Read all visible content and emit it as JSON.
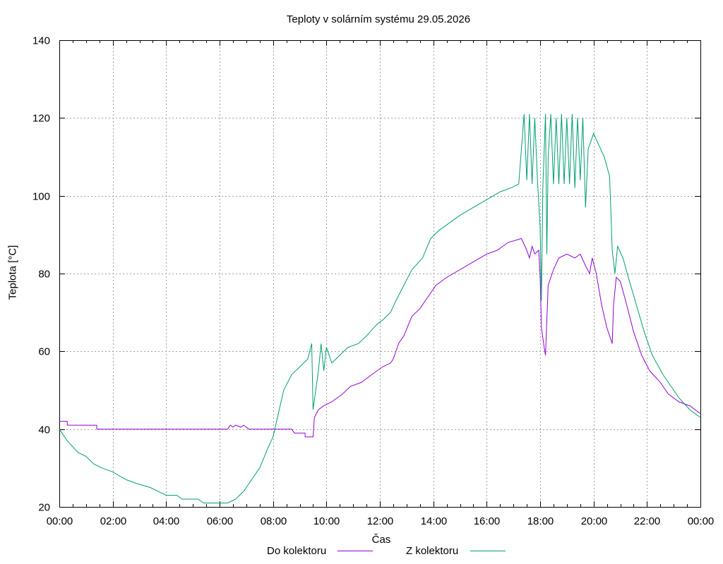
{
  "chart_data": {
    "type": "line",
    "title": "Teploty v solárním systému 29.05.2026",
    "xlabel": "Čas",
    "ylabel": "Teplota [°C]",
    "x_ticks": [
      "00:00",
      "02:00",
      "04:00",
      "06:00",
      "08:00",
      "10:00",
      "12:00",
      "14:00",
      "16:00",
      "18:00",
      "20:00",
      "22:00",
      "00:00"
    ],
    "xlim_hours": [
      0,
      24
    ],
    "ylim": [
      20,
      140
    ],
    "y_ticks": [
      20,
      40,
      60,
      80,
      100,
      120,
      140
    ],
    "grid": true,
    "legend_position": "bottom",
    "series": [
      {
        "name": "Do kolektoru",
        "color": "#9400d3",
        "points": [
          [
            0,
            42
          ],
          [
            0.3,
            42
          ],
          [
            0.3,
            41
          ],
          [
            1.4,
            41
          ],
          [
            1.4,
            40
          ],
          [
            6.3,
            40
          ],
          [
            6.4,
            41
          ],
          [
            6.5,
            40.5
          ],
          [
            6.6,
            41
          ],
          [
            6.8,
            40.5
          ],
          [
            6.9,
            41
          ],
          [
            7.1,
            40
          ],
          [
            8.7,
            40
          ],
          [
            8.8,
            39
          ],
          [
            9.2,
            39
          ],
          [
            9.2,
            38
          ],
          [
            9.5,
            38
          ],
          [
            9.55,
            43
          ],
          [
            9.7,
            45
          ],
          [
            9.9,
            46
          ],
          [
            10.2,
            47
          ],
          [
            10.6,
            49
          ],
          [
            10.9,
            51
          ],
          [
            11.3,
            52
          ],
          [
            11.7,
            54
          ],
          [
            12.1,
            56
          ],
          [
            12.4,
            57
          ],
          [
            12.5,
            58
          ],
          [
            12.7,
            62
          ],
          [
            12.9,
            64
          ],
          [
            13.2,
            69
          ],
          [
            13.5,
            71
          ],
          [
            13.8,
            74
          ],
          [
            14.1,
            77
          ],
          [
            14.5,
            79
          ],
          [
            15,
            81
          ],
          [
            15.5,
            83
          ],
          [
            16,
            85
          ],
          [
            16.4,
            86
          ],
          [
            16.8,
            88
          ],
          [
            17.3,
            89
          ],
          [
            17.5,
            86
          ],
          [
            17.6,
            84
          ],
          [
            17.7,
            87
          ],
          [
            17.8,
            85
          ],
          [
            17.95,
            86
          ],
          [
            18,
            79
          ],
          [
            18.05,
            66
          ],
          [
            18.15,
            61
          ],
          [
            18.2,
            59
          ],
          [
            18.3,
            77
          ],
          [
            18.5,
            81
          ],
          [
            18.7,
            84
          ],
          [
            19,
            85
          ],
          [
            19.3,
            84
          ],
          [
            19.5,
            85
          ],
          [
            19.7,
            82
          ],
          [
            19.85,
            80
          ],
          [
            19.95,
            84
          ],
          [
            20.1,
            80
          ],
          [
            20.3,
            72
          ],
          [
            20.5,
            66
          ],
          [
            20.65,
            63
          ],
          [
            20.7,
            62
          ],
          [
            20.75,
            72
          ],
          [
            20.85,
            79
          ],
          [
            21,
            78
          ],
          [
            21.2,
            73
          ],
          [
            21.5,
            65
          ],
          [
            21.8,
            59
          ],
          [
            22.1,
            55
          ],
          [
            22.5,
            52
          ],
          [
            22.8,
            49
          ],
          [
            23.2,
            47
          ],
          [
            23.6,
            46
          ],
          [
            24,
            44
          ]
        ]
      },
      {
        "name": "Z kolektoru",
        "color": "#009e73",
        "points": [
          [
            0,
            40
          ],
          [
            0.3,
            37
          ],
          [
            0.7,
            34
          ],
          [
            1,
            33
          ],
          [
            1.3,
            31
          ],
          [
            1.6,
            30
          ],
          [
            2,
            29
          ],
          [
            2.5,
            27
          ],
          [
            2.9,
            26
          ],
          [
            3.4,
            25
          ],
          [
            3.7,
            24
          ],
          [
            4,
            23
          ],
          [
            4.4,
            23
          ],
          [
            4.6,
            22
          ],
          [
            5.2,
            22
          ],
          [
            5.4,
            21
          ],
          [
            6.1,
            21
          ],
          [
            6.3,
            21
          ],
          [
            6.6,
            22
          ],
          [
            6.9,
            24
          ],
          [
            7.2,
            27
          ],
          [
            7.5,
            30
          ],
          [
            7.8,
            35
          ],
          [
            8,
            38
          ],
          [
            8.2,
            44
          ],
          [
            8.4,
            50
          ],
          [
            8.7,
            54
          ],
          [
            9,
            56
          ],
          [
            9.3,
            58
          ],
          [
            9.45,
            62
          ],
          [
            9.5,
            45
          ],
          [
            9.7,
            55
          ],
          [
            9.8,
            62
          ],
          [
            9.9,
            55
          ],
          [
            10,
            61
          ],
          [
            10.2,
            57
          ],
          [
            10.5,
            59
          ],
          [
            10.8,
            61
          ],
          [
            11.2,
            62
          ],
          [
            11.5,
            64
          ],
          [
            11.9,
            67
          ],
          [
            12.1,
            68
          ],
          [
            12.4,
            70
          ],
          [
            12.6,
            73
          ],
          [
            12.9,
            77
          ],
          [
            13.2,
            81
          ],
          [
            13.6,
            84
          ],
          [
            13.9,
            89
          ],
          [
            14.2,
            91
          ],
          [
            14.6,
            93
          ],
          [
            15,
            95
          ],
          [
            15.5,
            97
          ],
          [
            16,
            99
          ],
          [
            16.5,
            101
          ],
          [
            16.9,
            102
          ],
          [
            17.2,
            103
          ],
          [
            17.4,
            121
          ],
          [
            17.5,
            104
          ],
          [
            17.6,
            121
          ],
          [
            17.7,
            103
          ],
          [
            17.8,
            120
          ],
          [
            17.9,
            104
          ],
          [
            18.0,
            92
          ],
          [
            18.05,
            73
          ],
          [
            18.1,
            102
          ],
          [
            18.2,
            121
          ],
          [
            18.25,
            85
          ],
          [
            18.3,
            110
          ],
          [
            18.4,
            121
          ],
          [
            18.5,
            103
          ],
          [
            18.6,
            120
          ],
          [
            18.7,
            103
          ],
          [
            18.8,
            121
          ],
          [
            18.9,
            103
          ],
          [
            19,
            120
          ],
          [
            19.1,
            103
          ],
          [
            19.2,
            121
          ],
          [
            19.3,
            102
          ],
          [
            19.4,
            120
          ],
          [
            19.5,
            104
          ],
          [
            19.6,
            120
          ],
          [
            19.7,
            97
          ],
          [
            19.8,
            112
          ],
          [
            20,
            116
          ],
          [
            20.2,
            113
          ],
          [
            20.4,
            110
          ],
          [
            20.6,
            105
          ],
          [
            20.7,
            86
          ],
          [
            20.8,
            80
          ],
          [
            20.9,
            87
          ],
          [
            21.1,
            84
          ],
          [
            21.3,
            79
          ],
          [
            21.6,
            72
          ],
          [
            21.9,
            65
          ],
          [
            22.2,
            59
          ],
          [
            22.6,
            54
          ],
          [
            22.9,
            51
          ],
          [
            23.2,
            48
          ],
          [
            23.6,
            45
          ],
          [
            24,
            43
          ]
        ]
      }
    ]
  }
}
